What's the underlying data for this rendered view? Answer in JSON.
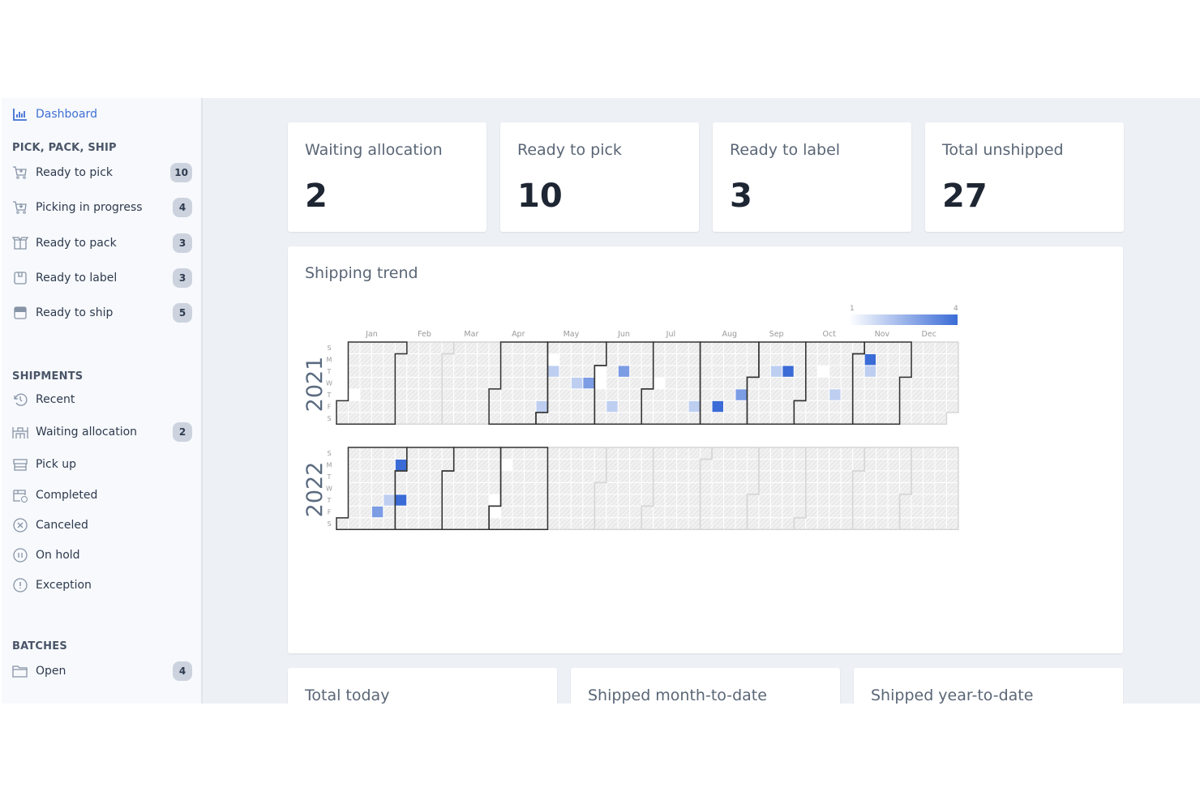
{
  "sidebar": {
    "dashboard": "Dashboard",
    "sections": [
      {
        "title": "PICK, PACK, SHIP",
        "items": [
          {
            "label": "Ready to pick",
            "count": "10",
            "icon": "cart-plus-icon"
          },
          {
            "label": "Picking in progress",
            "count": "4",
            "icon": "cart-down-icon"
          },
          {
            "label": "Ready to pack",
            "count": "3",
            "icon": "open-box-icon"
          },
          {
            "label": "Ready to label",
            "count": "3",
            "icon": "box-icon"
          },
          {
            "label": "Ready to ship",
            "count": "5",
            "icon": "box-filled-icon"
          }
        ]
      },
      {
        "title": "SHIPMENTS",
        "items": [
          {
            "label": "Recent",
            "icon": "history-icon"
          },
          {
            "label": "Waiting allocation",
            "count": "2",
            "icon": "warehouse-icon"
          },
          {
            "label": "Pick up",
            "icon": "store-icon"
          },
          {
            "label": "Completed",
            "icon": "box-check-icon"
          },
          {
            "label": "Canceled",
            "icon": "x-circle-icon"
          },
          {
            "label": "On hold",
            "icon": "pause-circle-icon"
          },
          {
            "label": "Exception",
            "icon": "alert-circle-icon"
          }
        ]
      },
      {
        "title": "BATCHES",
        "items": [
          {
            "label": "Open",
            "count": "4",
            "icon": "folder-icon"
          }
        ]
      }
    ]
  },
  "stats": [
    {
      "label": "Waiting allocation",
      "value": "2"
    },
    {
      "label": "Ready to pick",
      "value": "10"
    },
    {
      "label": "Ready to label",
      "value": "3"
    },
    {
      "label": "Total unshipped",
      "value": "27"
    }
  ],
  "bottom_cards": [
    {
      "label": "Total today"
    },
    {
      "label": "Shipped month-to-date"
    },
    {
      "label": "Shipped year-to-date"
    }
  ],
  "trend_title": "Shipping trend",
  "chart_data": {
    "type": "heatmap",
    "subtype": "calendar",
    "title": "Shipping trend",
    "years": [
      2021,
      2022
    ],
    "months": [
      "Jan",
      "Feb",
      "Mar",
      "Apr",
      "May",
      "Jun",
      "Jul",
      "Aug",
      "Sep",
      "Oct",
      "Nov",
      "Dec"
    ],
    "weekdays": [
      "S",
      "M",
      "T",
      "W",
      "T",
      "F",
      "S"
    ],
    "legend": {
      "min": 1,
      "max": 4,
      "min_label": "1",
      "max_label": "4",
      "min_color": "#ffffff",
      "max_color": "#3a6bd6"
    },
    "highlighted_months": {
      "2021": [
        1,
        4,
        5,
        6,
        7,
        8,
        9,
        10,
        11
      ],
      "2022": [
        1,
        2,
        3,
        4
      ]
    },
    "values": [
      {
        "date": "2021-01-07",
        "value": 1
      },
      {
        "date": "2021-04-30",
        "value": 2
      },
      {
        "date": "2021-05-03",
        "value": 1
      },
      {
        "date": "2021-05-04",
        "value": 2
      },
      {
        "date": "2021-05-19",
        "value": 2
      },
      {
        "date": "2021-05-26",
        "value": 3
      },
      {
        "date": "2021-06-01",
        "value": 1
      },
      {
        "date": "2021-06-02",
        "value": 1
      },
      {
        "date": "2021-06-11",
        "value": 2
      },
      {
        "date": "2021-06-15",
        "value": 3
      },
      {
        "date": "2021-07-07",
        "value": 1
      },
      {
        "date": "2021-07-30",
        "value": 2
      },
      {
        "date": "2021-08-13",
        "value": 4
      },
      {
        "date": "2021-08-26",
        "value": 3
      },
      {
        "date": "2021-09-14",
        "value": 2
      },
      {
        "date": "2021-09-21",
        "value": 4
      },
      {
        "date": "2021-10-12",
        "value": 1
      },
      {
        "date": "2021-10-21",
        "value": 2
      },
      {
        "date": "2021-11-08",
        "value": 4
      },
      {
        "date": "2021-11-09",
        "value": 2
      },
      {
        "date": "2022-01-21",
        "value": 3
      },
      {
        "date": "2022-01-27",
        "value": 2
      },
      {
        "date": "2022-01-31",
        "value": 4
      },
      {
        "date": "2022-02-03",
        "value": 4
      },
      {
        "date": "2022-03-31",
        "value": 1
      },
      {
        "date": "2022-04-01",
        "value": 1
      },
      {
        "date": "2022-04-04",
        "value": 1
      }
    ]
  }
}
